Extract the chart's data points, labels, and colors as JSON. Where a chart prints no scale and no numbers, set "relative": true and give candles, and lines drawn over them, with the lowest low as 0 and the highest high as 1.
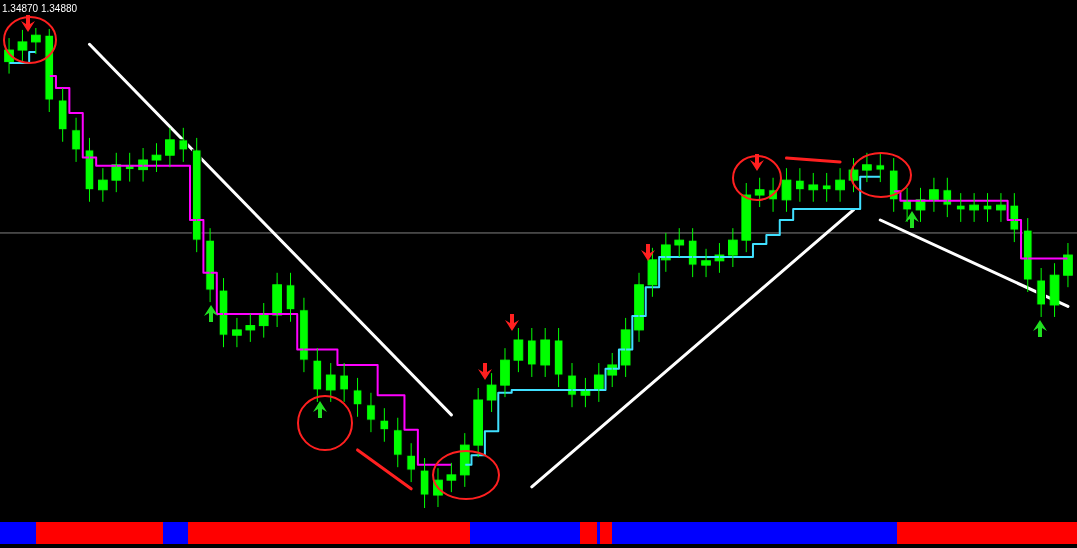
{
  "chart_data": {
    "type": "candlestick",
    "relative": true,
    "color": "#00ff00",
    "categories": [
      null,
      null,
      null,
      null,
      null,
      null,
      null,
      null,
      null,
      null,
      null,
      null,
      null,
      null,
      null,
      null,
      null,
      null,
      null,
      null,
      null,
      null,
      null,
      null,
      null,
      null,
      null,
      null,
      null,
      null,
      null,
      null,
      null,
      null,
      null,
      null,
      null,
      null,
      null,
      null,
      null,
      null,
      null,
      null,
      null,
      null,
      null,
      null,
      null,
      null,
      null,
      null,
      null,
      null,
      null,
      null,
      null,
      null,
      null,
      null,
      null,
      null,
      null,
      null,
      null,
      null,
      null,
      null,
      null,
      null,
      null,
      null,
      null,
      null,
      null,
      null,
      null,
      null,
      null,
      null
    ],
    "ohlc": [
      [
        0.93,
        0.979,
        0.905,
        0.954
      ],
      [
        0.954,
        0.996,
        0.929,
        0.971
      ],
      [
        0.971,
        1,
        0.946,
        0.985
      ],
      [
        0.985,
        0.998,
        0.825,
        0.85
      ],
      [
        0.85,
        0.875,
        0.763,
        0.788
      ],
      [
        0.788,
        0.813,
        0.721,
        0.746
      ],
      [
        0.746,
        0.771,
        0.638,
        0.663
      ],
      [
        0.663,
        0.708,
        0.638,
        0.683
      ],
      [
        0.683,
        0.74,
        0.658,
        0.715
      ],
      [
        0.715,
        0.74,
        0.68,
        0.705
      ],
      [
        0.705,
        0.75,
        0.68,
        0.725
      ],
      [
        0.725,
        0.76,
        0.7,
        0.735
      ],
      [
        0.735,
        0.792,
        0.71,
        0.767
      ],
      [
        0.767,
        0.792,
        0.721,
        0.746
      ],
      [
        0.746,
        0.771,
        0.533,
        0.558
      ],
      [
        0.558,
        0.583,
        0.429,
        0.454
      ],
      [
        0.454,
        0.479,
        0.335,
        0.36
      ],
      [
        0.36,
        0.396,
        0.335,
        0.371
      ],
      [
        0.371,
        0.405,
        0.346,
        0.38
      ],
      [
        0.38,
        0.427,
        0.355,
        0.402
      ],
      [
        0.402,
        0.49,
        0.377,
        0.465
      ],
      [
        0.465,
        0.49,
        0.388,
        0.413
      ],
      [
        0.413,
        0.438,
        0.283,
        0.308
      ],
      [
        0.308,
        0.333,
        0.221,
        0.246
      ],
      [
        0.246,
        0.302,
        0.221,
        0.277
      ],
      [
        0.277,
        0.302,
        0.221,
        0.246
      ],
      [
        0.246,
        0.271,
        0.19,
        0.215
      ],
      [
        0.215,
        0.24,
        0.158,
        0.183
      ],
      [
        0.183,
        0.208,
        0.138,
        0.163
      ],
      [
        0.163,
        0.188,
        0.085,
        0.11
      ],
      [
        0.11,
        0.135,
        0.054,
        0.079
      ],
      [
        0.079,
        0.104,
        0,
        0.027
      ],
      [
        0.027,
        0.083,
        0.002,
        0.058
      ],
      [
        0.058,
        0.094,
        0.033,
        0.069
      ],
      [
        0.069,
        0.156,
        0.044,
        0.131
      ],
      [
        0.131,
        0.25,
        0.106,
        0.225
      ],
      [
        0.225,
        0.281,
        0.2,
        0.256
      ],
      [
        0.256,
        0.333,
        0.231,
        0.308
      ],
      [
        0.308,
        0.375,
        0.283,
        0.35
      ],
      [
        0.35,
        0.375,
        0.273,
        0.298
      ],
      [
        0.298,
        0.375,
        0.273,
        0.35
      ],
      [
        0.35,
        0.375,
        0.252,
        0.277
      ],
      [
        0.277,
        0.302,
        0.21,
        0.235
      ],
      [
        0.235,
        0.271,
        0.21,
        0.246
      ],
      [
        0.246,
        0.302,
        0.221,
        0.277
      ],
      [
        0.277,
        0.323,
        0.252,
        0.298
      ],
      [
        0.298,
        0.396,
        0.273,
        0.371
      ],
      [
        0.371,
        0.49,
        0.346,
        0.465
      ],
      [
        0.465,
        0.542,
        0.44,
        0.517
      ],
      [
        0.517,
        0.573,
        0.492,
        0.548
      ],
      [
        0.548,
        0.583,
        0.523,
        0.558
      ],
      [
        0.558,
        0.583,
        0.481,
        0.506
      ],
      [
        0.506,
        0.54,
        0.481,
        0.515
      ],
      [
        0.515,
        0.552,
        0.49,
        0.527
      ],
      [
        0.527,
        0.583,
        0.502,
        0.558
      ],
      [
        0.558,
        0.677,
        0.533,
        0.652
      ],
      [
        0.652,
        0.688,
        0.627,
        0.663
      ],
      [
        0.663,
        0.688,
        0.617,
        0.642
      ],
      [
        0.642,
        0.708,
        0.617,
        0.683
      ],
      [
        0.683,
        0.708,
        0.638,
        0.663
      ],
      [
        0.663,
        0.698,
        0.638,
        0.673
      ],
      [
        0.673,
        0.698,
        0.638,
        0.663
      ],
      [
        0.663,
        0.708,
        0.638,
        0.683
      ],
      [
        0.683,
        0.729,
        0.658,
        0.704
      ],
      [
        0.704,
        0.74,
        0.679,
        0.715
      ],
      [
        0.715,
        0.74,
        0.679,
        0.704
      ],
      [
        0.704,
        0.729,
        0.617,
        0.642
      ],
      [
        0.642,
        0.667,
        0.596,
        0.621
      ],
      [
        0.621,
        0.667,
        0.596,
        0.642
      ],
      [
        0.642,
        0.688,
        0.617,
        0.663
      ],
      [
        0.663,
        0.688,
        0.606,
        0.631
      ],
      [
        0.631,
        0.656,
        0.596,
        0.621
      ],
      [
        0.621,
        0.656,
        0.596,
        0.631
      ],
      [
        0.631,
        0.656,
        0.596,
        0.621
      ],
      [
        0.621,
        0.656,
        0.596,
        0.631
      ],
      [
        0.631,
        0.656,
        0.554,
        0.579
      ],
      [
        0.579,
        0.604,
        0.45,
        0.475
      ],
      [
        0.475,
        0.5,
        0.398,
        0.423
      ],
      [
        0.423,
        0.51,
        0.398,
        0.485
      ],
      [
        0.485,
        0.552,
        0.46,
        0.527
      ]
    ],
    "series": [
      {
        "type": "step",
        "color": "#ff00ff",
        "values": [
          null,
          null,
          null,
          0.9,
          0.875,
          0.823,
          0.73,
          0.713,
          0.713,
          0.713,
          0.713,
          0.713,
          0.713,
          0.713,
          0.6,
          0.49,
          0.404,
          0.404,
          0.404,
          0.404,
          0.404,
          0.404,
          0.33,
          0.33,
          0.33,
          0.298,
          0.298,
          0.298,
          0.235,
          0.235,
          0.163,
          0.09,
          0.09,
          0.09,
          null,
          null,
          null,
          null,
          null,
          null,
          null,
          null,
          null,
          null,
          null,
          null,
          null,
          null,
          null,
          null,
          null,
          null,
          null,
          null,
          null,
          null,
          null,
          null,
          null,
          null,
          null,
          null,
          null,
          null,
          null,
          null,
          0.66,
          0.64,
          0.64,
          0.64,
          0.64,
          0.64,
          0.64,
          0.64,
          0.64,
          0.6,
          0.52,
          0.52,
          0.52,
          0.52
        ]
      },
      {
        "type": "step",
        "color": "#40e0ff",
        "values": [
          0.927,
          0.927,
          0.95,
          null,
          null,
          null,
          null,
          null,
          null,
          null,
          null,
          null,
          null,
          null,
          null,
          null,
          null,
          null,
          null,
          null,
          null,
          null,
          null,
          null,
          null,
          null,
          null,
          null,
          null,
          null,
          null,
          null,
          null,
          null,
          0.09,
          0.11,
          0.16,
          0.24,
          0.246,
          0.246,
          0.246,
          0.246,
          0.246,
          0.246,
          0.246,
          0.29,
          0.33,
          0.4,
          0.46,
          0.523,
          0.523,
          0.523,
          0.523,
          0.523,
          0.523,
          0.523,
          0.55,
          0.569,
          0.6,
          0.623,
          0.623,
          0.623,
          0.623,
          0.623,
          0.69,
          0.69,
          null,
          null,
          null,
          null,
          null,
          null,
          null,
          null,
          null,
          null,
          null,
          null,
          null,
          null
        ]
      },
      {
        "type": "line",
        "color": "#ffffff",
        "values": [
          null,
          null,
          null,
          null,
          null,
          null,
          0.966,
          null,
          null,
          null,
          null,
          null,
          null,
          null,
          null,
          null,
          null,
          null,
          null,
          null,
          null,
          null,
          null,
          null,
          null,
          null,
          null,
          null,
          null,
          null,
          null,
          null,
          null,
          0.194,
          null,
          null,
          null,
          null,
          null,
          null,
          null,
          null,
          null,
          null,
          null,
          null,
          null,
          null,
          null,
          null,
          null,
          null,
          null,
          null,
          null,
          null,
          null,
          null,
          null,
          null,
          null,
          null,
          null,
          null,
          null,
          null,
          null,
          null,
          null,
          null,
          null,
          null,
          null,
          null,
          null,
          null,
          null,
          null,
          null,
          null
        ]
      },
      {
        "type": "line",
        "color": "#ffffff",
        "values": [
          null,
          null,
          null,
          null,
          null,
          null,
          null,
          null,
          null,
          null,
          null,
          null,
          null,
          null,
          null,
          null,
          null,
          null,
          null,
          null,
          null,
          null,
          null,
          null,
          null,
          null,
          null,
          null,
          null,
          null,
          null,
          null,
          null,
          null,
          null,
          null,
          null,
          null,
          null,
          0.044,
          null,
          null,
          null,
          null,
          null,
          null,
          null,
          null,
          null,
          null,
          null,
          null,
          null,
          null,
          null,
          null,
          null,
          null,
          null,
          null,
          null,
          null,
          null,
          0.621,
          null,
          null,
          null,
          null,
          null,
          null,
          null,
          null,
          null,
          null,
          null,
          null,
          null,
          null,
          null,
          null
        ]
      },
      {
        "type": "line",
        "color": "#ffffff",
        "values": [
          null,
          null,
          null,
          null,
          null,
          null,
          null,
          null,
          null,
          null,
          null,
          null,
          null,
          null,
          null,
          null,
          null,
          null,
          null,
          null,
          null,
          null,
          null,
          null,
          null,
          null,
          null,
          null,
          null,
          null,
          null,
          null,
          null,
          null,
          null,
          null,
          null,
          null,
          null,
          null,
          null,
          null,
          null,
          null,
          null,
          null,
          null,
          null,
          null,
          null,
          null,
          null,
          null,
          null,
          null,
          null,
          null,
          null,
          null,
          null,
          null,
          null,
          null,
          null,
          null,
          0.6,
          null,
          null,
          null,
          null,
          null,
          null,
          null,
          null,
          null,
          null,
          null,
          null,
          null,
          0.42
        ]
      },
      {
        "type": "line",
        "color": "#ff2020",
        "values": [
          null,
          null,
          null,
          null,
          null,
          null,
          null,
          null,
          null,
          null,
          null,
          null,
          null,
          null,
          null,
          null,
          null,
          null,
          null,
          null,
          null,
          null,
          null,
          null,
          null,
          null,
          0.121,
          null,
          null,
          null,
          0.04,
          null,
          null,
          null,
          null,
          null,
          null,
          null,
          null,
          null,
          null,
          null,
          null,
          null,
          null,
          null,
          null,
          null,
          null,
          null,
          null,
          null,
          null,
          null,
          null,
          null,
          null,
          null,
          null,
          null,
          null,
          null,
          null,
          null,
          null,
          null,
          null,
          null,
          null,
          null,
          null,
          null,
          null,
          null,
          null,
          null,
          null,
          null,
          null,
          null
        ]
      },
      {
        "type": "line",
        "color": "#ff2020",
        "values": [
          null,
          null,
          null,
          null,
          null,
          null,
          null,
          null,
          null,
          null,
          null,
          null,
          null,
          null,
          null,
          null,
          null,
          null,
          null,
          null,
          null,
          null,
          null,
          null,
          null,
          null,
          null,
          null,
          null,
          null,
          null,
          null,
          null,
          null,
          null,
          null,
          null,
          null,
          null,
          null,
          null,
          null,
          null,
          null,
          null,
          null,
          null,
          null,
          null,
          null,
          null,
          null,
          null,
          null,
          null,
          null,
          null,
          null,
          0.729,
          null,
          null,
          null,
          0.721,
          null,
          null,
          null,
          null,
          null,
          null,
          null,
          null,
          null,
          null,
          null,
          null,
          null,
          null,
          null,
          null,
          null
        ]
      }
    ],
    "ref_lines": [
      {
        "axis": "y",
        "value": 0.573,
        "color": "#808080"
      }
    ],
    "annotations": [
      "1.34870 1.34880"
    ]
  }
}
